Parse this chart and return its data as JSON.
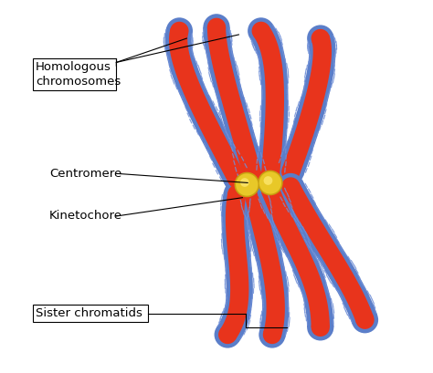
{
  "background_color": "#ffffff",
  "red_color": "#e8341c",
  "blue_color": "#5b7ec9",
  "gold_color": "#e8c828",
  "gold_dark": "#c8a010",
  "label_color": "#000000",
  "labels": {
    "homologous": "Homologous\nchromosomes",
    "centromere": "Centromere",
    "kinetochore": "Kinetochore",
    "sister": "Sister chromatids"
  },
  "figsize": [
    4.74,
    4.09
  ],
  "dpi": 100
}
